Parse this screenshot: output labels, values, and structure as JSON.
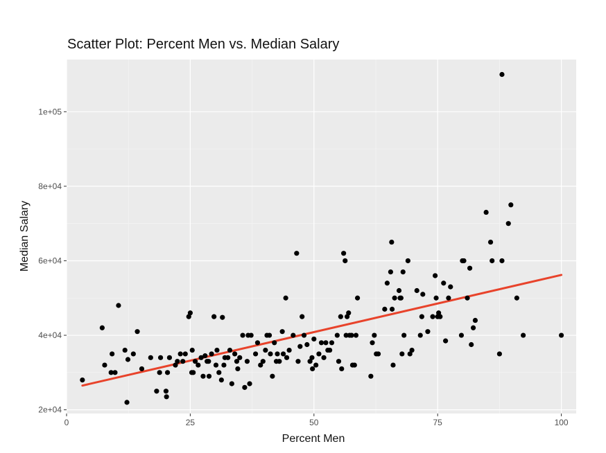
{
  "chart_data": {
    "type": "scatter",
    "title": "Scatter Plot: Percent Men vs. Median Salary",
    "xlabel": "Percent Men",
    "ylabel": "Median Salary",
    "xlim": [
      0,
      103
    ],
    "ylim": [
      19000,
      114000
    ],
    "x_ticks": [
      0,
      25,
      50,
      75,
      100
    ],
    "x_tick_labels": [
      "0",
      "25",
      "50",
      "75",
      "100"
    ],
    "y_ticks": [
      20000,
      40000,
      60000,
      80000,
      100000
    ],
    "y_tick_labels": [
      "2e+04",
      "4e+04",
      "6e+04",
      "8e+04",
      "1e+05"
    ],
    "grid": true,
    "background": "#ebebeb",
    "point_color": "#000000",
    "trend_line": {
      "color": "#e8432b",
      "x": [
        3.2,
        100
      ],
      "y": [
        26500,
        56200
      ]
    },
    "points": [
      [
        3.2,
        28000
      ],
      [
        7.2,
        42000
      ],
      [
        7.7,
        32000
      ],
      [
        9.0,
        30000
      ],
      [
        9.2,
        35000
      ],
      [
        9.8,
        30000
      ],
      [
        10.5,
        48000
      ],
      [
        11.8,
        36000
      ],
      [
        12.2,
        22000
      ],
      [
        12.4,
        33500
      ],
      [
        13.5,
        35000
      ],
      [
        14.3,
        41000
      ],
      [
        15.2,
        31000
      ],
      [
        17.0,
        34000
      ],
      [
        18.2,
        25000
      ],
      [
        18.8,
        30000
      ],
      [
        19.0,
        34000
      ],
      [
        20.1,
        25000
      ],
      [
        20.2,
        23500
      ],
      [
        20.4,
        30000
      ],
      [
        20.8,
        34000
      ],
      [
        22.0,
        32000
      ],
      [
        22.4,
        33000
      ],
      [
        23.0,
        35000
      ],
      [
        23.5,
        33000
      ],
      [
        24.0,
        35000
      ],
      [
        24.7,
        45000
      ],
      [
        25.0,
        46000
      ],
      [
        25.3,
        30000
      ],
      [
        25.4,
        36000
      ],
      [
        25.6,
        30000
      ],
      [
        26.0,
        33000
      ],
      [
        26.6,
        32000
      ],
      [
        27.2,
        34000
      ],
      [
        27.6,
        29000
      ],
      [
        28.0,
        34500
      ],
      [
        28.4,
        33000
      ],
      [
        28.7,
        33000
      ],
      [
        28.8,
        29000
      ],
      [
        29.3,
        35000
      ],
      [
        29.8,
        45000
      ],
      [
        30.2,
        32000
      ],
      [
        30.4,
        36000
      ],
      [
        30.8,
        30000
      ],
      [
        31.3,
        28000
      ],
      [
        31.5,
        44800
      ],
      [
        31.8,
        32000
      ],
      [
        32.0,
        34000
      ],
      [
        32.6,
        34000
      ],
      [
        33.0,
        36000
      ],
      [
        33.4,
        27000
      ],
      [
        34.0,
        35000
      ],
      [
        34.4,
        33000
      ],
      [
        34.6,
        31000
      ],
      [
        35.0,
        34000
      ],
      [
        35.6,
        40000
      ],
      [
        36.0,
        26000
      ],
      [
        36.5,
        33000
      ],
      [
        36.7,
        40000
      ],
      [
        37.0,
        27000
      ],
      [
        37.3,
        40000
      ],
      [
        38.2,
        35000
      ],
      [
        38.6,
        38000
      ],
      [
        39.2,
        32000
      ],
      [
        39.7,
        33000
      ],
      [
        40.2,
        36000
      ],
      [
        40.5,
        40000
      ],
      [
        41.0,
        40000
      ],
      [
        41.2,
        35000
      ],
      [
        41.6,
        29000
      ],
      [
        42.0,
        38000
      ],
      [
        42.4,
        33000
      ],
      [
        42.6,
        35000
      ],
      [
        43.0,
        33000
      ],
      [
        43.6,
        41000
      ],
      [
        43.8,
        35000
      ],
      [
        44.3,
        50000
      ],
      [
        44.5,
        34000
      ],
      [
        45.0,
        36000
      ],
      [
        45.8,
        40000
      ],
      [
        46.5,
        62000
      ],
      [
        46.8,
        33000
      ],
      [
        47.2,
        37000
      ],
      [
        47.6,
        45000
      ],
      [
        48.0,
        40000
      ],
      [
        48.6,
        37500
      ],
      [
        49.2,
        33000
      ],
      [
        49.6,
        34000
      ],
      [
        49.7,
        31000
      ],
      [
        50.0,
        39000
      ],
      [
        50.4,
        32000
      ],
      [
        51.0,
        35000
      ],
      [
        51.5,
        38000
      ],
      [
        52.0,
        34000
      ],
      [
        52.4,
        38000
      ],
      [
        52.8,
        36000
      ],
      [
        53.2,
        36000
      ],
      [
        53.6,
        38000
      ],
      [
        54.7,
        40000
      ],
      [
        55.0,
        33000
      ],
      [
        55.4,
        45000
      ],
      [
        55.6,
        31000
      ],
      [
        56.0,
        62000
      ],
      [
        56.3,
        60000
      ],
      [
        56.5,
        40000
      ],
      [
        56.7,
        45000
      ],
      [
        57.0,
        46000
      ],
      [
        57.2,
        40000
      ],
      [
        57.6,
        40000
      ],
      [
        57.8,
        32000
      ],
      [
        58.2,
        32000
      ],
      [
        58.5,
        40000
      ],
      [
        58.8,
        50000
      ],
      [
        61.5,
        29000
      ],
      [
        61.8,
        38000
      ],
      [
        62.2,
        40000
      ],
      [
        62.6,
        35000
      ],
      [
        63.0,
        35000
      ],
      [
        64.3,
        47000
      ],
      [
        64.8,
        54000
      ],
      [
        65.5,
        57000
      ],
      [
        65.7,
        65000
      ],
      [
        65.8,
        47000
      ],
      [
        66.0,
        32000
      ],
      [
        66.3,
        50000
      ],
      [
        67.2,
        52000
      ],
      [
        67.4,
        50000
      ],
      [
        67.6,
        50000
      ],
      [
        67.8,
        35000
      ],
      [
        68.0,
        57000
      ],
      [
        68.2,
        40000
      ],
      [
        69.0,
        60000
      ],
      [
        69.4,
        35000
      ],
      [
        69.8,
        36000
      ],
      [
        70.8,
        52000
      ],
      [
        71.5,
        40000
      ],
      [
        71.8,
        45000
      ],
      [
        72.0,
        51000
      ],
      [
        73.0,
        41000
      ],
      [
        74.0,
        45000
      ],
      [
        74.5,
        56000
      ],
      [
        74.7,
        50000
      ],
      [
        75.0,
        45000
      ],
      [
        75.2,
        46000
      ],
      [
        75.5,
        45000
      ],
      [
        76.2,
        54000
      ],
      [
        76.6,
        38500
      ],
      [
        77.2,
        50000
      ],
      [
        77.6,
        53000
      ],
      [
        79.8,
        40000
      ],
      [
        80.0,
        60000
      ],
      [
        80.3,
        60000
      ],
      [
        81.0,
        50000
      ],
      [
        81.5,
        58000
      ],
      [
        81.8,
        37500
      ],
      [
        82.2,
        42000
      ],
      [
        82.6,
        44000
      ],
      [
        84.8,
        73000
      ],
      [
        85.7,
        65000
      ],
      [
        86.0,
        60000
      ],
      [
        87.5,
        35000
      ],
      [
        88.0,
        110000
      ],
      [
        88.0,
        60000
      ],
      [
        89.3,
        70000
      ],
      [
        89.8,
        75000
      ],
      [
        91.0,
        50000
      ],
      [
        92.3,
        40000
      ],
      [
        100,
        40000
      ]
    ]
  }
}
